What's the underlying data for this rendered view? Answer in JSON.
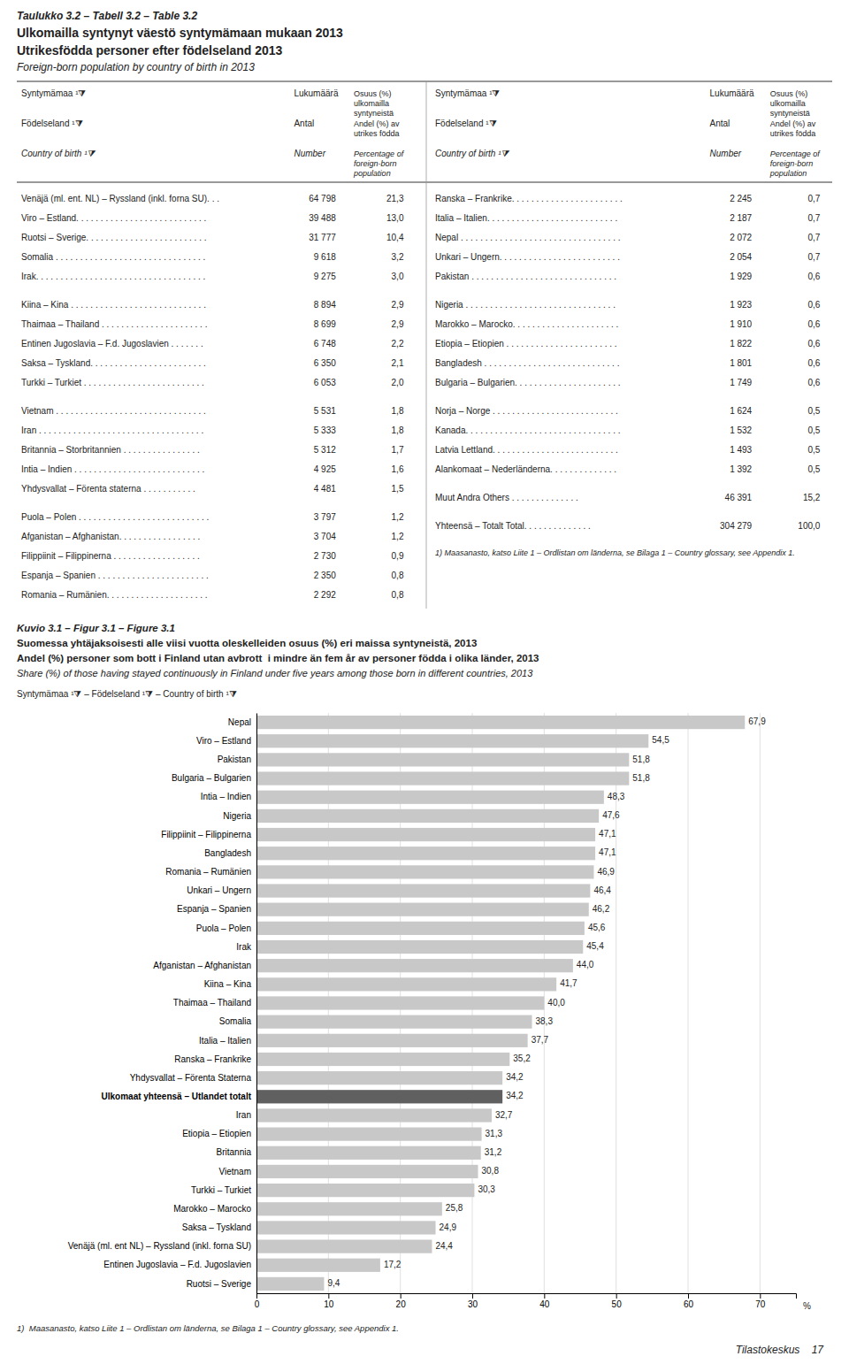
{
  "page": {
    "title_lines": [
      "Taulukko 3.2 – Tabell 3.2 – Table 3.2",
      "Ulkomailla syntynyt väestö syntymämaan mukaan 2013",
      "Utrikesfödda personer efter födelseland 2013",
      "Foreign-born population by country of birth in 2013"
    ],
    "table_header": [
      [
        [
          "Syntymämaa ¹⧩"
        ],
        [
          "Lukumäärä"
        ],
        [
          "Osuus (%)",
          "ulkomailla",
          "syntyneistä"
        ]
      ],
      [
        [
          "Födelseland ¹⧩"
        ],
        [
          "Antal"
        ],
        [
          "Andel (%) av",
          "utrikes födda"
        ]
      ],
      [
        [
          "Country of birth ¹⧩"
        ],
        [
          "Number"
        ],
        [
          "Percentage of",
          "foreign-born",
          "population"
        ]
      ]
    ],
    "table_left": [
      [
        [
          "Venäjä (ml. ent. NL) – Ryssland (inkl. forna SU). . .",
          "64 798",
          "21,3"
        ],
        [
          "Viro – Estland. . . . . . . . . . . . . . . . . . . . . . . . . . .",
          "39 488",
          "13,0"
        ],
        [
          "Ruotsi – Sverige. . . . . . . . . . . . . . . . . . . . . . . . .",
          "31 777",
          "10,4"
        ],
        [
          "Somalia . . . . . . . . . . . . . . . . . . . . . . . . . . . . . . .",
          "9 618",
          "3,2"
        ],
        [
          "Irak. . . . . . . . . . . . . . . . . . . . . . . . . . . . . . . . . . .",
          "9 275",
          "3,0"
        ]
      ],
      [
        [
          "Kiina – Kina . . . . . . . . . . . . . . . . . . . . . . . . . . . .",
          "8 894",
          "2,9"
        ],
        [
          "Thaimaa – Thailand . . . . . . . . . . . . . . . . . . . . . .",
          "8 699",
          "2,9"
        ],
        [
          "Entinen Jugoslavia – F.d. Jugoslavien . . . . . . .",
          "6 748",
          "2,2"
        ],
        [
          "Saksa – Tyskland. . . . . . . . . . . . . . . . . . . . . . . .",
          "6 350",
          "2,1"
        ],
        [
          "Turkki – Turkiet . . . . . . . . . . . . . . . . . . . . . . . . .",
          "6 053",
          "2,0"
        ]
      ],
      [
        [
          "Vietnam . . . . . . . . . . . . . . . . . . . . . . . . . . . . . . .",
          "5 531",
          "1,8"
        ],
        [
          "Iran . . . . . . . . . . . . . . . . . . . . . . . . . . . . . . . . . .",
          "5 333",
          "1,8"
        ],
        [
          "Britannia – Storbritannien . . . . . . . . . . . . . . . .",
          "5 312",
          "1,7"
        ],
        [
          "Intia – Indien . . . . . . . . . . . . . . . . . . . . . . . . . . .",
          "4 925",
          "1,6"
        ],
        [
          "Yhdysvallat – Förenta staterna . . . . . . . . . . .",
          "4 481",
          "1,5"
        ]
      ],
      [
        [
          "Puola – Polen . . . . . . . . . . . . . . . . . . . . . . . . . . .",
          "3 797",
          "1,2"
        ],
        [
          "Afganistan – Afghanistan. . . . . . . . . . . . . . . . .",
          "3 704",
          "1,2"
        ],
        [
          "Filippiinit – Filippinerna . . . . . . . . . . . . . . . . . .",
          "2 730",
          "0,9"
        ],
        [
          "Espanja – Spanien . . . . . . . . . . . . . . . . . . . . . . .",
          "2 350",
          "0,8"
        ],
        [
          "Romania – Rumänien. . . . . . . . . . . . . . . . . . . . .",
          "2 292",
          "0,8"
        ]
      ]
    ],
    "table_right": [
      [
        [
          "Ranska – Frankrike. . . . . . . . . . . . . . . . . . . . . . .",
          "2 245",
          "0,7"
        ],
        [
          "Italia – Italien. . . . . . . . . . . . . . . . . . . . . . . . . . .",
          "2 187",
          "0,7"
        ],
        [
          "Nepal . . . . . . . . . . . . . . . . . . . . . . . . . . . . . . . . .",
          "2 072",
          "0,7"
        ],
        [
          "Unkari – Ungern. . . . . . . . . . . . . . . . . . . . . . . . .",
          "2 054",
          "0,7"
        ],
        [
          "Pakistan . . . . . . . . . . . . . . . . . . . . . . . . . . . . . .",
          "1 929",
          "0,6"
        ]
      ],
      [
        [
          "Nigeria . . . . . . . . . . . . . . . . . . . . . . . . . . . . . . .",
          "1 923",
          "0,6"
        ],
        [
          "Marokko – Marocko. . . . . . . . . . . . . . . . . . . . . .",
          "1 910",
          "0,6"
        ],
        [
          "Etiopia – Etiopien . . . . . . . . . . . . . . . . . . . . . . .",
          "1 822",
          "0,6"
        ],
        [
          "Bangladesh . . . . . . . . . . . . . . . . . . . . . . . . . . . .",
          "1 801",
          "0,6"
        ],
        [
          "Bulgaria – Bulgarien. . . . . . . . . . . . . . . . . . . . . .",
          "1 749",
          "0,6"
        ]
      ],
      [
        [
          "Norja – Norge . . . . . . . . . . . . . . . . . . . . . . . . . .",
          "1 624",
          "0,5"
        ],
        [
          "Kanada. . . . . . . . . . . . . . . . . . . . . . . . . . . . . . . .",
          "1 532",
          "0,5"
        ],
        [
          "Latvia Lettland. . . . . . . . . . . . . . . . . . . . . . . . . .",
          "1 493",
          "0,5"
        ],
        [
          "Alankomaat – Nederländerna. . . . . . . . . . . . . .",
          "1 392",
          "0,5"
        ]
      ],
      [
        [
          "Muut Andra Others . . . . . . . . . . . . . .",
          "46 391",
          "15,2"
        ]
      ],
      [
        [
          "Yhteensä – Totalt Total. . . . . . . . . . . . . .",
          "304 279",
          "100,0"
        ]
      ]
    ],
    "table_footnote": "1) Maasanasto, katso Liite 1 – Ordlistan om länderna, se Bilaga 1 – Country glossary, see Appendix 1.",
    "chart_footnote": "1)  Maasanasto, katso Liite 1 – Ordlistan om länderna, se Bilaga 1 – Country glossary, see Appendix 1.",
    "page_number": "Tilastokeskus    17"
  },
  "chart_data": {
    "type": "bar",
    "orientation": "horizontal",
    "title": "Kuvio 3.1 – Figur 3.1 – Figure 3.1",
    "subtitle": [
      "Suomessa yhtäjaksoisesti alle viisi vuotta oleskelleiden osuus (%) eri maissa syntyneistä, 2013",
      "Andel (%) personer som bott i Finland utan avbrott  i mindre än fem år av personer födda i olika länder, 2013",
      "Share (%) of those having stayed continuously in Finland under five years among those born in different countries, 2013"
    ],
    "ylabel": "Syntymämaa ¹⧩ – Födelseland ¹⧩ – Country of birth ¹⧩",
    "xlabel": "%",
    "categories": [
      "Nepal",
      "Viro – Estland",
      "Pakistan",
      "Bulgaria – Bulgarien",
      "Intia – Indien",
      "Nigeria",
      "Filippiinit – Filippinerna",
      "Bangladesh",
      "Romania – Rumänien",
      "Unkari – Ungern",
      "Espanja – Spanien",
      "Puola – Polen",
      "Irak",
      "Afganistan – Afghanistan",
      "Kiina – Kina",
      "Thaimaa – Thailand",
      "Somalia",
      "Italia – Italien",
      "Ranska – Frankrike",
      "Yhdysvallat – Förenta Staterna",
      "Ulkomaat yhteensä – Utlandet totalt",
      "Iran",
      "Etiopia – Etiopien",
      "Britannia",
      "Vietnam",
      "Turkki – Turkiet",
      "Marokko – Marocko",
      "Saksa – Tyskland",
      "Venäjä (ml. ent NL) – Ryssland (inkl. forna SU)",
      "Entinen Jugoslavia – F.d. Jugoslavien",
      "Ruotsi – Sverige"
    ],
    "values": [
      67.9,
      54.5,
      51.8,
      51.8,
      48.3,
      47.6,
      47.1,
      47.1,
      46.9,
      46.4,
      46.2,
      45.6,
      45.4,
      44.0,
      41.7,
      40.0,
      38.3,
      37.7,
      35.2,
      34.2,
      34.2,
      32.7,
      31.3,
      31.2,
      30.8,
      30.3,
      25.8,
      24.9,
      24.4,
      17.2,
      9.4
    ],
    "value_labels": [
      "67,9",
      "54,5",
      "51,8",
      "51,8",
      "48,3",
      "47,6",
      "47,1",
      "47,1",
      "46,9",
      "46,4",
      "46,2",
      "45,6",
      "45,4",
      "44,0",
      "41,7",
      "40,0",
      "38,3",
      "37,7",
      "35,2",
      "34,2",
      "34,2",
      "32,7",
      "31,3",
      "31,2",
      "30,8",
      "30,3",
      "25,8",
      "24,9",
      "24,4",
      "17,2",
      "9,4"
    ],
    "data_labels": true,
    "colors": [
      "#c8c8c8",
      "#c8c8c8",
      "#c8c8c8",
      "#c8c8c8",
      "#c8c8c8",
      "#c8c8c8",
      "#c8c8c8",
      "#c8c8c8",
      "#c8c8c8",
      "#c8c8c8",
      "#c8c8c8",
      "#c8c8c8",
      "#c8c8c8",
      "#c8c8c8",
      "#c8c8c8",
      "#c8c8c8",
      "#c8c8c8",
      "#c8c8c8",
      "#c8c8c8",
      "#c8c8c8",
      "#606060",
      "#c8c8c8",
      "#c8c8c8",
      "#c8c8c8",
      "#c8c8c8",
      "#c8c8c8",
      "#c8c8c8",
      "#c8c8c8",
      "#c8c8c8",
      "#c8c8c8",
      "#c8c8c8"
    ],
    "xlim": [
      0,
      75
    ],
    "xticks": [
      0,
      10,
      20,
      30,
      40,
      50,
      60,
      70
    ],
    "grid": true
  }
}
